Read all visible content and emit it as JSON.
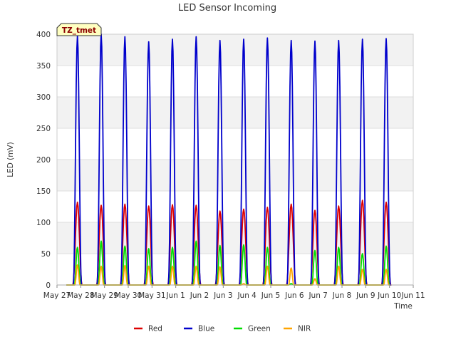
{
  "chart_data": {
    "type": "line",
    "title": "LED Sensor Incoming",
    "xlabel": "Time",
    "ylabel": "LED (mV)",
    "ylim": [
      0,
      400
    ],
    "y_ticks": [
      0,
      50,
      100,
      150,
      200,
      250,
      300,
      350,
      400
    ],
    "x_tick_labels": [
      "May 27",
      "May 28",
      "May 29",
      "May 30",
      "May 31",
      "Jun 1",
      "Jun 2",
      "Jun 3",
      "Jun 4",
      "Jun 5",
      "Jun 6",
      "Jun 7",
      "Jun 8",
      "Jun 9",
      "Jun 10",
      "Jun 11"
    ],
    "x_range_days": [
      0,
      15
    ],
    "grid": "horizontal bands",
    "legend_position": "bottom-center",
    "annotation_box": "TZ_tmet",
    "series": [
      {
        "name": "Red",
        "color": "#dd0000",
        "peak_days": [
          0.86,
          1.86,
          2.86,
          3.86,
          4.86,
          5.86,
          6.86,
          7.86,
          8.86,
          9.86,
          10.86,
          11.86,
          12.86,
          13.86
        ],
        "peaks": [
          132,
          127,
          129,
          126,
          128,
          127,
          118,
          121,
          124,
          129,
          119,
          126,
          135,
          132
        ]
      },
      {
        "name": "Blue",
        "color": "#0000cc",
        "peak_days": [
          0.86,
          1.86,
          2.86,
          3.86,
          4.86,
          5.86,
          6.86,
          7.86,
          8.86,
          9.86,
          10.86,
          11.86,
          12.86,
          13.86
        ],
        "peaks": [
          397,
          400,
          396,
          388,
          392,
          396,
          390,
          392,
          394,
          390,
          389,
          390,
          392,
          393
        ]
      },
      {
        "name": "Green",
        "color": "#00dd00",
        "peak_days": [
          0.86,
          1.86,
          2.86,
          3.86,
          4.86,
          5.86,
          6.86,
          7.86,
          8.86,
          9.86,
          10.86,
          11.86,
          12.86,
          13.86
        ],
        "peaks": [
          60,
          70,
          62,
          58,
          60,
          70,
          63,
          64,
          60,
          2,
          55,
          60,
          50,
          62
        ]
      },
      {
        "name": "NIR",
        "color": "#ffa500",
        "peak_days": [
          0.86,
          1.86,
          2.86,
          3.86,
          4.86,
          5.86,
          6.86,
          7.86,
          8.86,
          9.86,
          10.86,
          11.86,
          12.86,
          13.86
        ],
        "peaks": [
          32,
          30,
          31,
          30,
          30,
          30,
          29,
          2,
          30,
          27,
          10,
          30,
          25,
          25
        ]
      }
    ]
  }
}
